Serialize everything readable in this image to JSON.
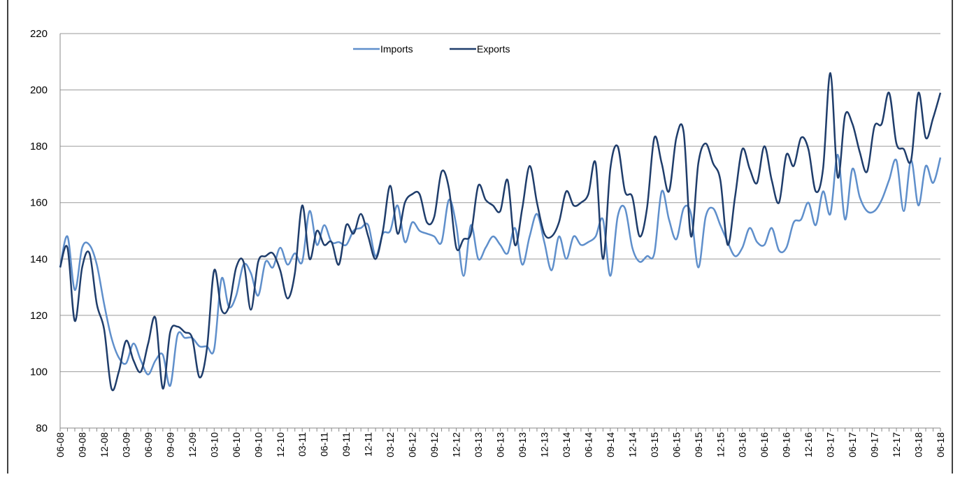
{
  "chart_data": {
    "type": "line",
    "categories": [
      "06-08",
      null,
      null,
      "09-08",
      null,
      null,
      "12-08",
      null,
      null,
      "03-09",
      null,
      null,
      "06-09",
      null,
      null,
      "09-09",
      null,
      null,
      "12-09",
      null,
      null,
      "03-10",
      null,
      null,
      "06-10",
      null,
      null,
      "09-10",
      null,
      null,
      "12-10",
      null,
      null,
      "03-11",
      null,
      null,
      "06-11",
      null,
      null,
      "09-11",
      null,
      null,
      "12-11",
      null,
      null,
      "03-12",
      null,
      null,
      "06-12",
      null,
      null,
      "09-12",
      null,
      null,
      "12-12",
      null,
      null,
      "03-13",
      null,
      null,
      "06-13",
      null,
      null,
      "09-13",
      null,
      null,
      "12-13",
      null,
      null,
      "03-14",
      null,
      null,
      "06-14",
      null,
      null,
      "09-14",
      null,
      null,
      "12-14",
      null,
      null,
      "03-15",
      null,
      null,
      "06-15",
      null,
      null,
      "09-15",
      null,
      null,
      "12-15",
      null,
      null,
      "03-16",
      null,
      null,
      "06-16",
      null,
      null,
      "09-16",
      null,
      null,
      "12-16",
      null,
      null,
      "03-17",
      null,
      null,
      "06-17",
      null,
      null,
      "09-17",
      null,
      null,
      "12-17",
      null,
      null,
      "03-18",
      null,
      null,
      "06-18"
    ],
    "series": [
      {
        "name": "Imports",
        "color": "#5f8fcb",
        "values": [
          137,
          148,
          129,
          144,
          145,
          138,
          124,
          112,
          105,
          103,
          110,
          104,
          99,
          104,
          106,
          95,
          113,
          112,
          112,
          109,
          109,
          108,
          133,
          123,
          127,
          138,
          135,
          127,
          139,
          137,
          144,
          138,
          142,
          139,
          157,
          145,
          152,
          146,
          146,
          145,
          150,
          151,
          152,
          141,
          149,
          150,
          159,
          146,
          153,
          150,
          149,
          148,
          146,
          161,
          152,
          134,
          152,
          140,
          144,
          148,
          145,
          142,
          151,
          138,
          148,
          156,
          146,
          136,
          148,
          140,
          148,
          145,
          146,
          148,
          154,
          134,
          155,
          158,
          144,
          139,
          141,
          142,
          164,
          154,
          147,
          158,
          156,
          137,
          155,
          158,
          152,
          146,
          141,
          144,
          151,
          146,
          145,
          151,
          143,
          144,
          153,
          154,
          160,
          152,
          164,
          156,
          177,
          154,
          172,
          162,
          157,
          157,
          161,
          168,
          175,
          157,
          175,
          159,
          173,
          167,
          176
        ]
      },
      {
        "name": "Exports",
        "color": "#1f3d6b",
        "values": [
          137,
          144,
          118,
          137,
          142,
          124,
          115,
          94,
          100,
          111,
          104,
          100,
          110,
          119,
          94,
          114,
          116,
          114,
          112,
          98,
          108,
          136,
          122,
          123,
          137,
          139,
          122,
          139,
          141,
          142,
          136,
          126,
          135,
          159,
          140,
          150,
          145,
          146,
          138,
          152,
          149,
          156,
          148,
          140,
          150,
          166,
          149,
          160,
          163,
          163,
          153,
          155,
          171,
          165,
          144,
          147,
          149,
          166,
          161,
          159,
          157,
          168,
          145,
          158,
          173,
          160,
          149,
          148,
          153,
          164,
          159,
          160,
          163,
          174,
          140,
          172,
          180,
          164,
          162,
          148,
          158,
          183,
          174,
          164,
          183,
          185,
          148,
          174,
          181,
          174,
          168,
          145,
          162,
          179,
          172,
          167,
          180,
          168,
          160,
          177,
          173,
          183,
          179,
          164,
          172,
          206,
          169,
          191,
          188,
          178,
          171,
          187,
          188,
          199,
          181,
          179,
          175,
          199,
          183,
          190,
          199
        ]
      }
    ],
    "ylim": [
      80,
      220
    ],
    "yticks": [
      80,
      100,
      120,
      140,
      160,
      180,
      200,
      220
    ],
    "grid": true,
    "legend": "top"
  }
}
